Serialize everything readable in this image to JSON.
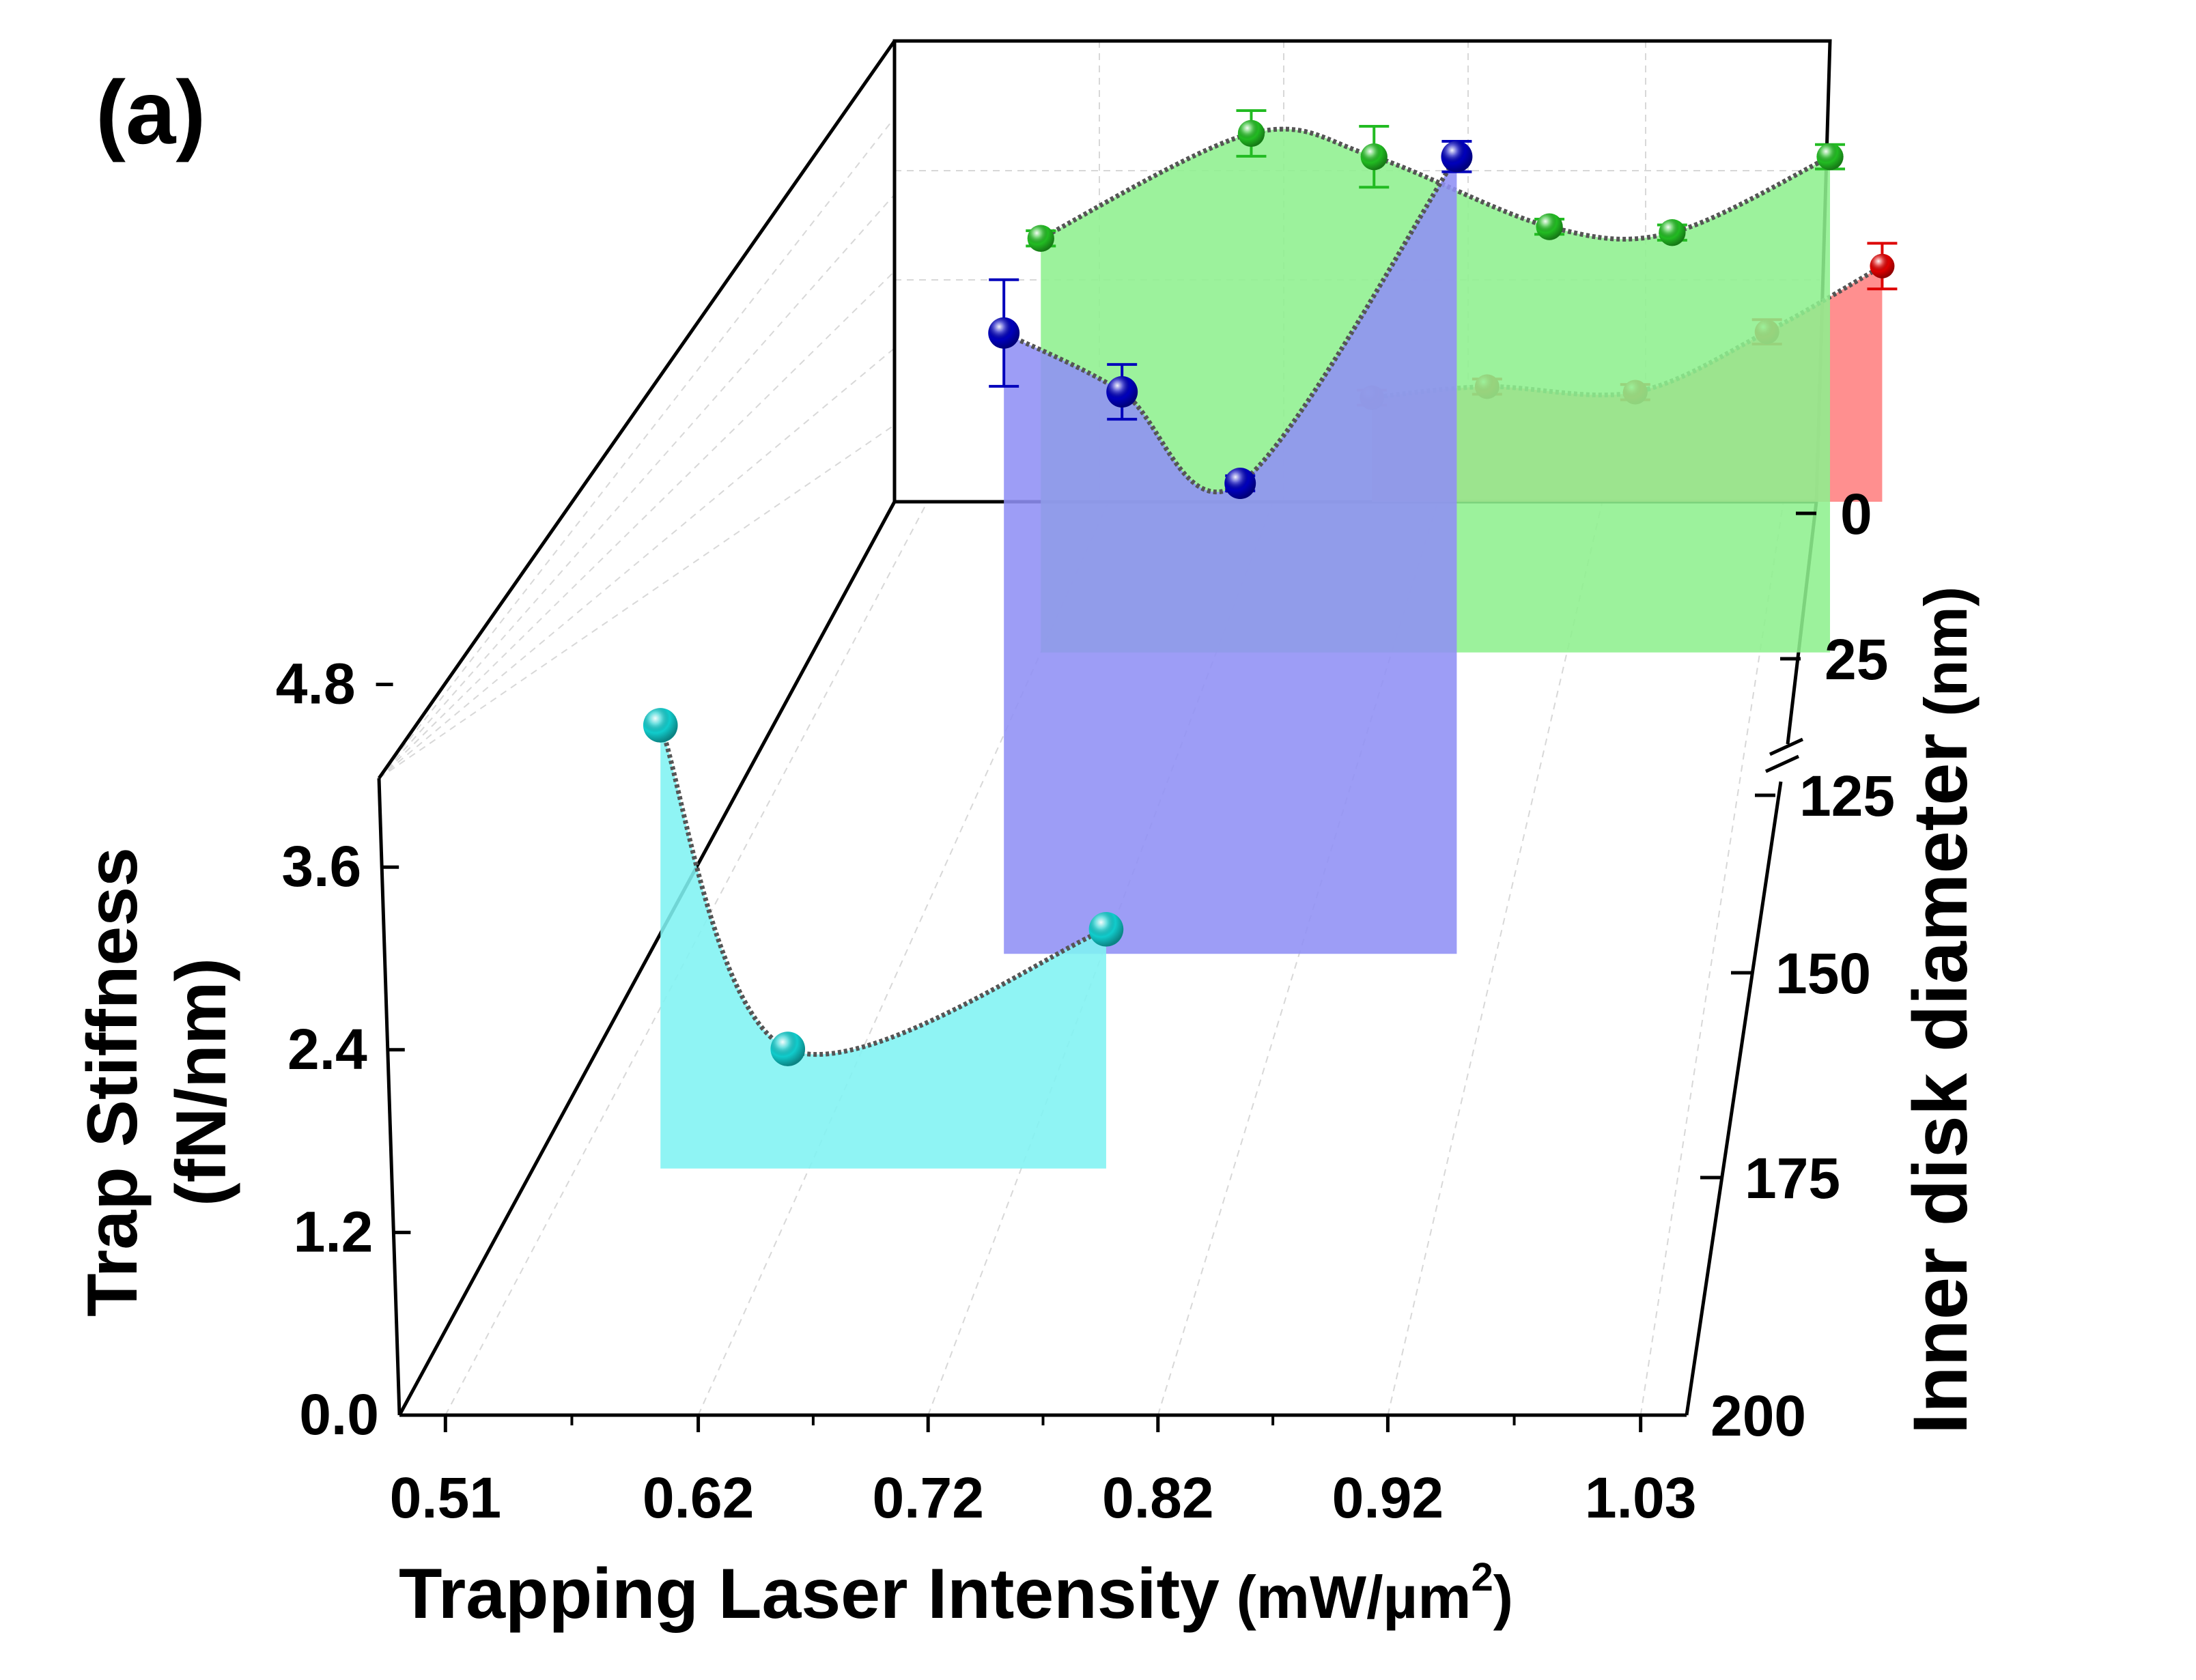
{
  "chart_data": {
    "type": "area",
    "panel_label": "(a)",
    "xlabel": "Trapping Laser Intensity",
    "xlabel_unit_base": "(mW/µm",
    "xlabel_unit_sup": "2",
    "xlabel_unit_close": ")",
    "ylabel_line1": "Trap Stiffness",
    "ylabel_line2": "(fN/nm)",
    "zlabel": "Inner disk diameter",
    "zlabel_unit": "(nm)",
    "x_ticks": [
      "0.51",
      "0.62",
      "0.72",
      "0.82",
      "0.92",
      "1.03"
    ],
    "y_ticks": [
      "0.0",
      "1.2",
      "2.4",
      "3.6",
      "4.8"
    ],
    "z_ticks": [
      "0",
      "25",
      "125",
      "150",
      "175",
      "200"
    ],
    "xlim": [
      0.49,
      1.05
    ],
    "ylim": [
      0,
      4.8
    ],
    "zlim": [
      0,
      200
    ],
    "axis_break": "between 25 and 125",
    "series": [
      {
        "name": "0 nm",
        "depth": 0,
        "color": "#ff7f7f",
        "marker": "#dd0000",
        "x": [
          0.78,
          0.85,
          0.94,
          1.02,
          1.09
        ],
        "y": [
          0.95,
          1.05,
          1.0,
          1.55,
          2.15
        ],
        "err": [
          0.05,
          0.05,
          0.05,
          0.08,
          0.15
        ]
      },
      {
        "name": "25 nm",
        "depth": 25,
        "color": "#8ef08e",
        "marker": "#22bb22",
        "x": [
          0.62,
          0.74,
          0.81,
          0.91,
          0.98,
          1.07
        ],
        "y": [
          3.55,
          4.45,
          4.25,
          3.65,
          3.6,
          4.25
        ],
        "err": [
          0.05,
          0.15,
          0.2,
          0.05,
          0.05,
          0.08
        ]
      },
      {
        "name": "150 nm",
        "depth": 150,
        "color": "#8f8ff5",
        "marker": "#0000bb",
        "x": [
          0.67,
          0.73,
          0.79,
          0.9
        ],
        "y": [
          4.75,
          4.3,
          3.6,
          6.1
        ],
        "err": [
          0.35,
          0.18,
          0.05,
          0.1
        ]
      },
      {
        "name": "175 nm",
        "depth": 175,
        "color": "#7ff3f3",
        "marker": "#11cccc",
        "x": [
          0.55,
          0.61,
          0.76
        ],
        "y": [
          3.15,
          0.85,
          1.7
        ],
        "err": [
          0.05,
          0.05,
          0.05
        ]
      }
    ]
  }
}
